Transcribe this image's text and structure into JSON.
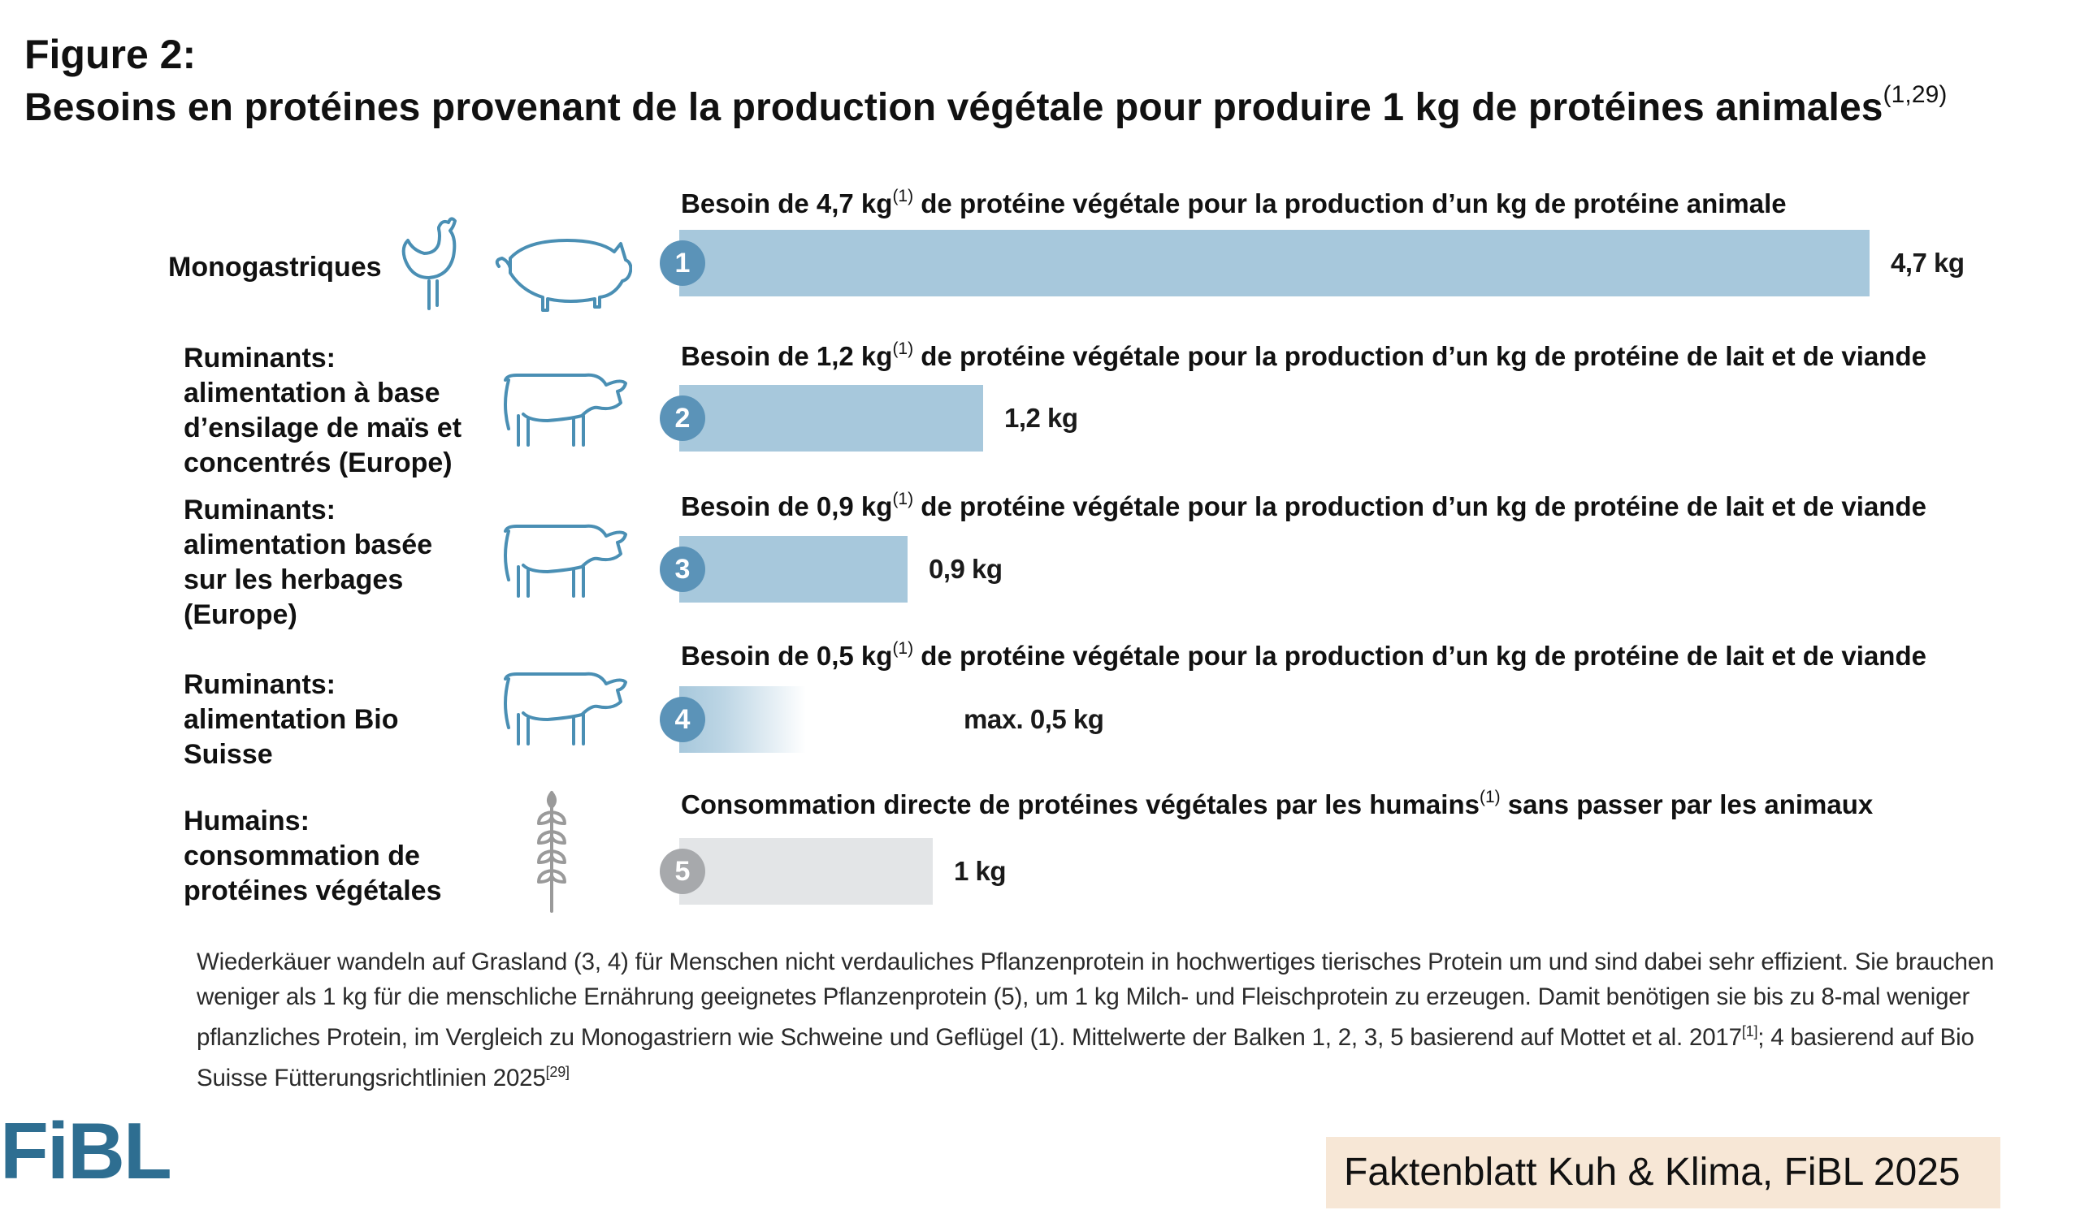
{
  "figure_label": "Figure 2:",
  "title": "Besoins en protéines provenant de la production végétale pour produire 1 kg de protéines animales",
  "title_ref": "(1,29)",
  "colors": {
    "bar_blue": "#a7c8dc",
    "bar_grey": "#e3e5e7",
    "badge_blue": "#5b93b8",
    "badge_grey": "#a7a9ac",
    "icon_blue": "#4a8fb4",
    "icon_grey": "#9a9a9a",
    "logo": "#2e6e91",
    "source_bg": "#f7e7d6"
  },
  "chart_data": {
    "type": "bar",
    "orientation": "horizontal",
    "unit": "kg",
    "categories": [
      "Monogastriques",
      "Ruminants: alimentation à base d’ensilage de maïs et concentrés (Europe)",
      "Ruminants: alimentation basée sur les herbages (Europe)",
      "Ruminants: alimentation Bio Suisse",
      "Humains: consommation de protéines végétales"
    ],
    "values": [
      4.7,
      1.2,
      0.9,
      0.5,
      1
    ],
    "xlim": [
      0,
      4.7
    ],
    "grid": false,
    "legend": "none",
    "rows": [
      {
        "num": "1",
        "label_lines": [
          "Monogastriques"
        ],
        "icons": [
          "chicken-icon",
          "pig-icon"
        ],
        "heading_pre": "Besoin de 4,7 kg",
        "heading_ref": "(1)",
        "heading_post": " de protéine végétale pour la production d’un kg de protéine animale",
        "value": 4.7,
        "value_label": "4,7 kg",
        "style": "solid-blue"
      },
      {
        "num": "2",
        "label_lines": [
          "Ruminants:",
          "alimentation à base",
          "d’ensilage de maïs et",
          "concentrés (Europe)"
        ],
        "icons": [
          "cow-icon"
        ],
        "heading_pre": "Besoin de 1,2 kg",
        "heading_ref": "(1)",
        "heading_post": " de protéine végétale pour la production d’un kg de protéine de lait et de viande",
        "value": 1.2,
        "value_label": "1,2 kg",
        "style": "solid-blue"
      },
      {
        "num": "3",
        "label_lines": [
          "Ruminants:",
          "alimentation basée",
          "sur les herbages",
          "(Europe)"
        ],
        "icons": [
          "cow-icon"
        ],
        "heading_pre": "Besoin de 0,9 kg",
        "heading_ref": "(1)",
        "heading_post": " de protéine végétale pour la production d’un kg de protéine de lait et de viande",
        "value": 0.9,
        "value_label": "0,9 kg",
        "style": "solid-blue"
      },
      {
        "num": "4",
        "label_lines": [
          "Ruminants:",
          "alimentation Bio",
          "Suisse"
        ],
        "icons": [
          "cow-icon"
        ],
        "heading_pre": "Besoin de 0,5 kg",
        "heading_ref": "(1)",
        "heading_post": " de protéine végétale pour la production d’un kg de protéine de lait et de viande",
        "value": 0.5,
        "value_label": "max. 0,5 kg",
        "style": "gradient-blue"
      },
      {
        "num": "5",
        "label_lines": [
          "Humains:",
          "consommation de",
          "protéines végétales"
        ],
        "icons": [
          "wheat-icon"
        ],
        "heading_pre": "Consommation directe de protéines végétales par les humains",
        "heading_ref": "(1)",
        "heading_post": " sans passer par les animaux",
        "value": 1,
        "value_label": "1 kg",
        "style": "solid-grey"
      }
    ]
  },
  "caption": {
    "text": "Wiederkäuer wandeln auf Grasland (3, 4) für Menschen nicht verdauliches Pflanzenprotein in hochwertiges tierisches Protein um und sind dabei sehr effizient. Sie brauchen weniger als 1 kg für die menschliche Ernährung geeignetes Pflanzenprotein (5), um 1 kg Milch- und Fleischprotein zu erzeugen. Damit benötigen sie bis zu 8-mal weniger pflanzliches Protein, im Vergleich zu Monogastriern wie Schweine und Geflügel (1). Mittelwerte der Balken 1, 2, 3, 5 basierend auf Mottet et al. 2017",
    "ref1": "[1]",
    "mid": "; 4 basierend auf Bio Suisse Fütterungsrichtlinien 2025",
    "ref2": "[29]"
  },
  "logo_text": "FiBL",
  "source": "Faktenblatt Kuh & Klima, FiBL 2025"
}
